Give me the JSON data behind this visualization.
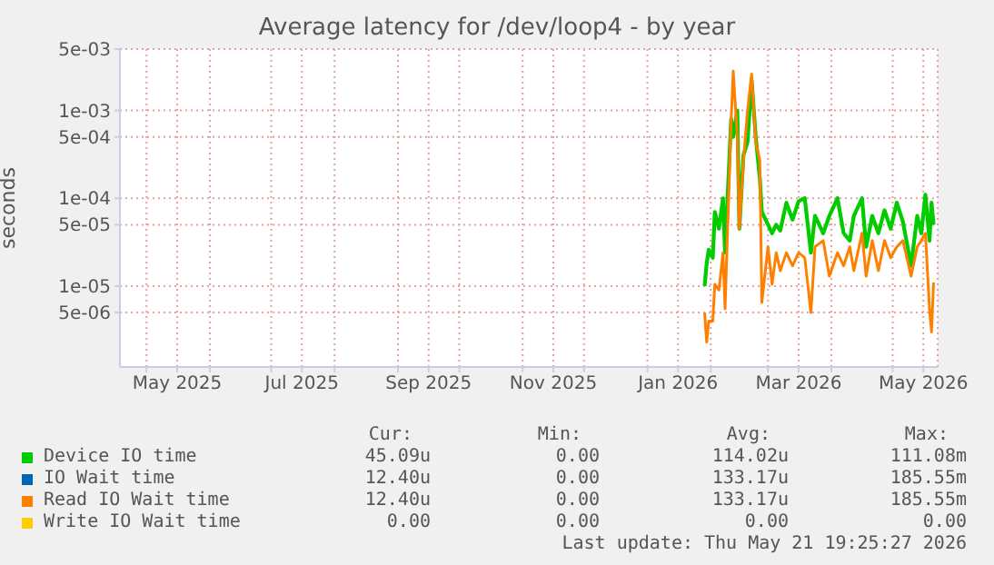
{
  "chart_data": {
    "type": "line",
    "title": "Average latency for /dev/loop4 - by year",
    "ylabel": "seconds",
    "log": "y",
    "grid": true,
    "legend": "bottom",
    "line_style": "solid",
    "marker": "none",
    "xlim": [
      "2025-04-18",
      "2026-05-23"
    ],
    "xticks": [
      {
        "value": "2025-05-01",
        "label": null
      },
      {
        "value": "2025-05-16",
        "label": "May 2025"
      },
      {
        "value": "2025-06-01",
        "label": null
      },
      {
        "value": "2025-07-01",
        "label": null
      },
      {
        "value": "2025-07-16",
        "label": "Jul 2025"
      },
      {
        "value": "2025-08-01",
        "label": null
      },
      {
        "value": "2025-09-01",
        "label": null
      },
      {
        "value": "2025-09-16",
        "label": "Sep 2025"
      },
      {
        "value": "2025-10-01",
        "label": null
      },
      {
        "value": "2025-11-01",
        "label": null
      },
      {
        "value": "2025-11-16",
        "label": "Nov 2025"
      },
      {
        "value": "2025-12-01",
        "label": null
      },
      {
        "value": "2026-01-01",
        "label": null
      },
      {
        "value": "2026-01-16",
        "label": "Jan 2026"
      },
      {
        "value": "2026-02-01",
        "label": null
      },
      {
        "value": "2026-03-01",
        "label": null
      },
      {
        "value": "2026-03-16",
        "label": "Mar 2026"
      },
      {
        "value": "2026-04-01",
        "label": null
      },
      {
        "value": "2026-05-01",
        "label": null
      },
      {
        "value": "2026-05-16",
        "label": "May 2026"
      }
    ],
    "ylim": [
      1.2e-06,
      0.005
    ],
    "yticks": [
      {
        "value": 5e-06,
        "label": "5e-06"
      },
      {
        "value": 1e-05,
        "label": "1e-05"
      },
      {
        "value": 5e-05,
        "label": "5e-05"
      },
      {
        "value": 0.0001,
        "label": "1e-04"
      },
      {
        "value": 0.0005,
        "label": "5e-04"
      },
      {
        "value": 0.001,
        "label": "1e-03"
      },
      {
        "value": 0.005,
        "label": "5e-03"
      }
    ],
    "x": [
      "2026-01-29",
      "2026-01-30",
      "2026-01-31",
      "2026-02-02",
      "2026-02-03",
      "2026-02-05",
      "2026-02-07",
      "2026-02-08",
      "2026-02-11",
      "2026-02-12",
      "2026-02-14",
      "2026-02-15",
      "2026-02-17",
      "2026-02-19",
      "2026-02-21",
      "2026-02-23",
      "2026-02-25",
      "2026-02-26",
      "2026-03-01",
      "2026-03-03",
      "2026-03-05",
      "2026-03-07",
      "2026-03-10",
      "2026-03-13",
      "2026-03-16",
      "2026-03-19",
      "2026-03-22",
      "2026-03-24",
      "2026-03-28",
      "2026-03-31",
      "2026-04-04",
      "2026-04-07",
      "2026-04-10",
      "2026-04-12",
      "2026-04-16",
      "2026-04-18",
      "2026-04-21",
      "2026-04-24",
      "2026-04-27",
      "2026-04-30",
      "2026-05-03",
      "2026-05-06",
      "2026-05-10",
      "2026-05-13",
      "2026-05-15",
      "2026-05-17",
      "2026-05-19",
      "2026-05-20",
      "2026-05-21"
    ],
    "series": [
      {
        "name": "Device IO time",
        "color": "#00cc00",
        "values": [
          1e-05,
          1.8e-05,
          2.6e-05,
          2.1e-05,
          7e-05,
          4.5e-05,
          0.0001,
          2.4e-05,
          0.0008,
          0.0005,
          0.001,
          4.5e-05,
          0.00031,
          0.00044,
          0.0022,
          0.0005,
          0.00017,
          7e-05,
          5e-05,
          4e-05,
          5e-05,
          4.3e-05,
          8.9e-05,
          5.7e-05,
          9.3e-05,
          0.0001,
          2.4e-05,
          6.3e-05,
          4e-05,
          6.3e-05,
          0.0001,
          4e-05,
          3.3e-05,
          6.3e-05,
          0.0001,
          2.8e-05,
          6.3e-05,
          4e-05,
          7.3e-05,
          4.5e-05,
          8.9e-05,
          5.4e-05,
          1.7e-05,
          6.3e-05,
          4e-05,
          0.00011,
          3.3e-05,
          8.9e-05,
          5e-05
        ]
      },
      {
        "name": "IO Wait time",
        "color": "#0066b3",
        "values": [
          null,
          null,
          null,
          null,
          null,
          null,
          null,
          null,
          null,
          null,
          null,
          null,
          null,
          null,
          null,
          null,
          null,
          null,
          null,
          null,
          null,
          null,
          null,
          null,
          null,
          null,
          null,
          null,
          null,
          null,
          null,
          null,
          null,
          null,
          null,
          null,
          null,
          null,
          null,
          null,
          null,
          null,
          null,
          null,
          null,
          null,
          null,
          null,
          null
        ]
      },
      {
        "name": "Read IO Wait time",
        "color": "#ff8000",
        "values": [
          5e-06,
          2.3e-06,
          4e-06,
          4e-06,
          1.05e-05,
          9e-06,
          2.4e-05,
          5.5e-06,
          0.0008,
          0.0028,
          0.0005,
          4.5e-05,
          0.00027,
          0.001,
          0.0026,
          0.00044,
          0.00027,
          6.5e-06,
          2.8e-05,
          1.05e-05,
          2.4e-05,
          1.5e-05,
          2.4e-05,
          1.7e-05,
          2.4e-05,
          2.1e-05,
          5e-06,
          2.8e-05,
          3.3e-05,
          1.3e-05,
          2.4e-05,
          1.7e-05,
          2.8e-05,
          1.5e-05,
          4e-05,
          1.3e-05,
          3.3e-05,
          1.5e-05,
          3.3e-05,
          2.1e-05,
          2.8e-05,
          3.3e-05,
          1.3e-05,
          2.8e-05,
          3.3e-05,
          4e-05,
          5.5e-06,
          3e-06,
          1.1e-05
        ]
      },
      {
        "name": "Write IO Wait time",
        "color": "#ffcc00",
        "values": [
          null,
          null,
          null,
          null,
          null,
          null,
          null,
          null,
          null,
          null,
          null,
          null,
          null,
          null,
          null,
          null,
          null,
          null,
          null,
          null,
          null,
          null,
          null,
          null,
          null,
          null,
          null,
          null,
          null,
          null,
          null,
          null,
          null,
          null,
          null,
          null,
          null,
          null,
          null,
          null,
          null,
          null,
          null,
          null,
          null,
          null,
          null,
          null,
          null
        ]
      }
    ],
    "annotations": [
      "Cur:",
      "Min:",
      "Avg:",
      "Max:",
      "45.09u",
      "0.00",
      "114.02u",
      "111.08m",
      "12.40u",
      "0.00",
      "133.17u",
      "185.55m",
      "12.40u",
      "0.00",
      "133.17u",
      "185.55m",
      "0.00",
      "0.00",
      "0.00",
      "0.00",
      "Last update: Thu May 21 19:25:27 2026"
    ]
  }
}
